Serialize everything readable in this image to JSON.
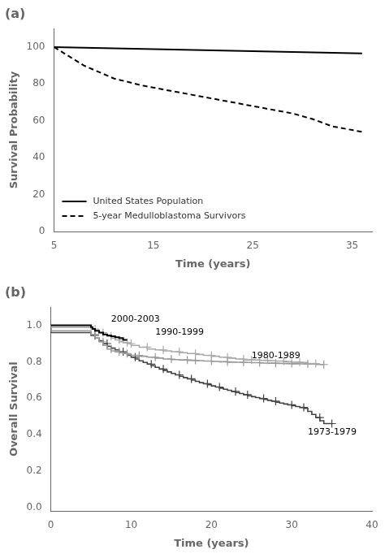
{
  "chart_data": [
    {
      "type": "line",
      "title": "(a)",
      "x_label": "Time (years)",
      "y_label": "Survival Probability",
      "xlim": [
        5,
        37
      ],
      "ylim": [
        0,
        110
      ],
      "xticks": [
        5,
        15,
        25,
        35
      ],
      "yticks": [
        0,
        20,
        40,
        60,
        80,
        100
      ],
      "grid": false,
      "legend": "lower left",
      "series": [
        {
          "name": "United States Population",
          "color": "#000000",
          "line_style": "solid",
          "x": [
            5,
            36
          ],
          "values": [
            100,
            96.5
          ]
        },
        {
          "name": "5-year Medulloblastoma Survivors",
          "color": "#000000",
          "line_style": "dashed",
          "x": [
            5,
            8,
            11,
            14,
            17,
            20,
            23,
            26,
            29,
            31,
            33,
            35,
            36
          ],
          "values": [
            100,
            90,
            83,
            79,
            76,
            73,
            70,
            67,
            64,
            61,
            57,
            55,
            54
          ]
        }
      ]
    },
    {
      "type": "step",
      "title": "(b)",
      "x_label": "Time (years)",
      "y_label": "Overall Survival",
      "xlim": [
        0,
        40
      ],
      "ylim": [
        -0.02,
        1.1
      ],
      "xticks": [
        0,
        10,
        20,
        30,
        40
      ],
      "yticks": [
        {
          "value": 0.0,
          "label": "0.0"
        },
        0.2,
        0.4,
        0.6,
        0.8,
        {
          "value": 1.0,
          "label": "1.0"
        }
      ],
      "grid": false,
      "series": [
        {
          "name": "2000-2003",
          "color": "#000000",
          "x": [
            0,
            5.0,
            5.2,
            5.5,
            6.0,
            6.5,
            7.0,
            7.5,
            8.0,
            8.5,
            9.0,
            9.5
          ],
          "values": [
            1.0,
            1.0,
            0.99,
            0.98,
            0.97,
            0.96,
            0.95,
            0.945,
            0.94,
            0.935,
            0.93,
            0.92
          ]
        },
        {
          "name": "1990-1999",
          "color": "#aaaaaa",
          "marker": "+",
          "x": [
            0,
            5,
            5.5,
            6,
            6.5,
            7,
            7.5,
            8,
            8.5,
            9,
            9.5,
            10,
            11,
            12,
            13,
            14,
            15,
            16,
            17,
            18,
            19,
            20,
            21,
            22,
            23,
            24,
            25,
            26,
            27,
            28,
            29,
            30,
            31,
            32,
            33
          ],
          "values": [
            1.0,
            0.99,
            0.98,
            0.97,
            0.96,
            0.95,
            0.94,
            0.93,
            0.92,
            0.91,
            0.905,
            0.9,
            0.89,
            0.88,
            0.87,
            0.865,
            0.86,
            0.855,
            0.85,
            0.845,
            0.84,
            0.835,
            0.83,
            0.825,
            0.82,
            0.815,
            0.81,
            0.81,
            0.808,
            0.806,
            0.804,
            0.8,
            0.798,
            0.796,
            0.79
          ]
        },
        {
          "name": "1980-1989",
          "color": "#999999",
          "marker": "+",
          "x": [
            0,
            5,
            5.5,
            6,
            6.5,
            7,
            7.5,
            8,
            8.5,
            9,
            9.5,
            10,
            11,
            12,
            13,
            14,
            15,
            16,
            17,
            18,
            19,
            20,
            21,
            22,
            23,
            24,
            25,
            26,
            27,
            28,
            29,
            30,
            31,
            32,
            33,
            34
          ],
          "values": [
            1.0,
            0.97,
            0.95,
            0.93,
            0.91,
            0.89,
            0.87,
            0.86,
            0.855,
            0.85,
            0.845,
            0.84,
            0.835,
            0.83,
            0.825,
            0.82,
            0.815,
            0.812,
            0.81,
            0.808,
            0.806,
            0.804,
            0.802,
            0.8,
            0.798,
            0.797,
            0.796,
            0.795,
            0.793,
            0.792,
            0.791,
            0.79,
            0.789,
            0.788,
            0.787,
            0.785
          ]
        },
        {
          "name": "1973-1979",
          "color": "#444444",
          "marker": "+",
          "x": [
            0,
            5,
            5.5,
            6,
            6.5,
            7,
            7.5,
            8,
            8.5,
            9,
            9.5,
            10,
            10.5,
            11,
            11.5,
            12,
            12.5,
            13,
            13.5,
            14,
            14.5,
            15,
            15.5,
            16,
            16.5,
            17,
            17.5,
            18,
            18.5,
            19,
            19.5,
            20,
            20.5,
            21,
            21.5,
            22,
            22.5,
            23,
            23.5,
            24,
            24.5,
            25,
            25.5,
            26,
            26.5,
            27,
            27.5,
            28,
            28.5,
            29,
            29.5,
            30,
            30.5,
            31,
            31.5,
            32,
            32.5,
            33,
            33.5,
            34,
            34.5,
            35
          ],
          "values": [
            1.0,
            0.96,
            0.945,
            0.93,
            0.915,
            0.9,
            0.885,
            0.875,
            0.865,
            0.855,
            0.845,
            0.835,
            0.825,
            0.815,
            0.805,
            0.796,
            0.787,
            0.778,
            0.769,
            0.76,
            0.752,
            0.744,
            0.736,
            0.728,
            0.72,
            0.713,
            0.706,
            0.699,
            0.692,
            0.685,
            0.679,
            0.673,
            0.667,
            0.661,
            0.655,
            0.649,
            0.643,
            0.637,
            0.631,
            0.625,
            0.619,
            0.613,
            0.608,
            0.603,
            0.598,
            0.593,
            0.588,
            0.583,
            0.578,
            0.573,
            0.568,
            0.563,
            0.558,
            0.554,
            0.549,
            0.544,
            0.527,
            0.51,
            0.493,
            0.476,
            0.46,
            0.46
          ]
        }
      ],
      "annotations": [
        {
          "text": "2000-2003",
          "x": 7.5,
          "y": 1.02
        },
        {
          "text": "1990-1999",
          "x": 13,
          "y": 0.95
        },
        {
          "text": "1980-1989",
          "x": 25,
          "y": 0.82
        },
        {
          "text": "1973-1979",
          "x": 32,
          "y": 0.4
        }
      ]
    }
  ]
}
